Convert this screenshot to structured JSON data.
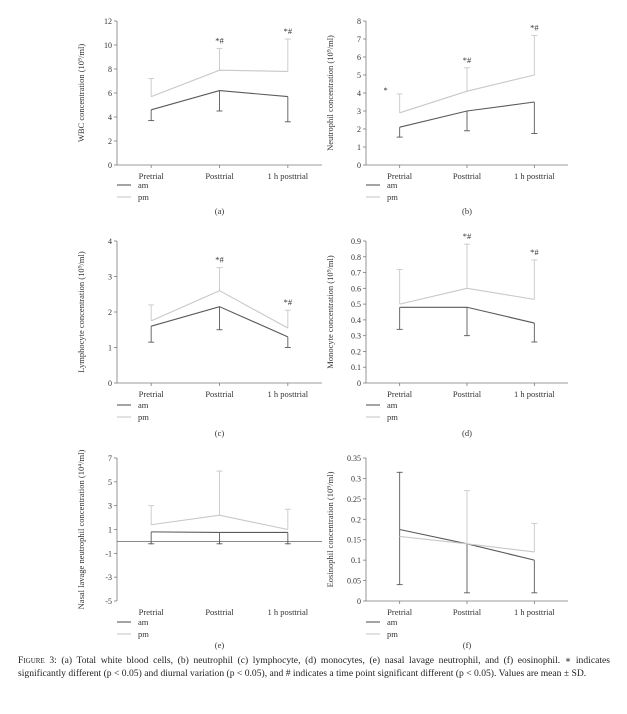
{
  "caption": {
    "label": "Figure 3:",
    "text": "(a) Total white blood cells, (b) neutrophil (c) lymphocyte, (d) monocytes, (e) nasal lavage neutrophil, and (f) eosinophil. ∗ indicates significantly different (p < 0.05) and diurnal variation (p < 0.05), and # indicates a time point significant different (p < 0.05). Values are mean ± SD."
  },
  "colors": {
    "am": "#5a5a5a",
    "pm": "#c8c8c8",
    "axis": "#7a7a7a"
  },
  "chart_data": [
    {
      "panel": "(a)",
      "type": "line",
      "ylabel": "WBC concentration (10⁹/ml)",
      "categories": [
        "Pretrial",
        "Posttrial",
        "1 h posttrial"
      ],
      "ylim": [
        0,
        12
      ],
      "yticks": [
        0,
        2,
        4,
        6,
        8,
        10,
        12
      ],
      "series": [
        {
          "name": "am",
          "values": [
            4.6,
            6.2,
            5.7
          ],
          "errors": [
            null,
            null,
            null
          ],
          "errors_down": [
            0.9,
            1.7,
            2.1
          ]
        },
        {
          "name": "pm",
          "values": [
            5.7,
            7.9,
            7.8
          ],
          "errors": [
            1.5,
            1.8,
            2.7
          ],
          "errors_down": [
            null,
            null,
            null
          ]
        }
      ],
      "annotations": [
        {
          "category": "Posttrial",
          "text": "*#"
        },
        {
          "category": "1 h posttrial",
          "text": "*#"
        }
      ]
    },
    {
      "panel": "(b)",
      "type": "line",
      "ylabel": "Neutrophil concentration (10⁹/ml)",
      "categories": [
        "Pretrial",
        "Posttrial",
        "1 h posttrial"
      ],
      "ylim": [
        0,
        8
      ],
      "yticks": [
        0,
        1,
        2,
        3,
        4,
        5,
        6,
        7,
        8
      ],
      "series": [
        {
          "name": "am",
          "values": [
            2.1,
            3.0,
            3.5
          ],
          "errors": [
            null,
            null,
            null
          ],
          "errors_down": [
            0.55,
            1.1,
            1.75
          ]
        },
        {
          "name": "pm",
          "values": [
            2.9,
            4.1,
            5.0
          ],
          "errors": [
            1.05,
            1.3,
            2.2
          ],
          "errors_down": [
            null,
            null,
            null
          ]
        }
      ],
      "annotations": [
        {
          "category": "Pretrial",
          "text": "*"
        },
        {
          "category": "Posttrial",
          "text": "*#"
        },
        {
          "category": "1 h posttrial",
          "text": "*#"
        }
      ]
    },
    {
      "panel": "(c)",
      "type": "line",
      "ylabel": "Lymphocyte concentration (10⁹/ml)",
      "categories": [
        "Pretrial",
        "Posttrial",
        "1 h posttrial"
      ],
      "ylim": [
        0,
        4
      ],
      "yticks": [
        0,
        1,
        2,
        3,
        4
      ],
      "series": [
        {
          "name": "am",
          "values": [
            1.6,
            2.15,
            1.3
          ],
          "errors": [
            null,
            null,
            null
          ],
          "errors_down": [
            0.45,
            0.65,
            0.3
          ]
        },
        {
          "name": "pm",
          "values": [
            1.75,
            2.6,
            1.55
          ],
          "errors": [
            0.45,
            0.65,
            0.5
          ],
          "errors_down": [
            null,
            null,
            null
          ]
        }
      ],
      "annotations": [
        {
          "category": "Posttrial",
          "text": "*#"
        },
        {
          "category": "1 h posttrial",
          "text": "*#"
        }
      ]
    },
    {
      "panel": "(d)",
      "type": "line",
      "ylabel": "Monocyte concentration (10⁹/ml)",
      "categories": [
        "Pretrial",
        "Posttrial",
        "1 h posttrial"
      ],
      "ylim": [
        0,
        0.9
      ],
      "yticks": [
        0,
        0.1,
        0.2,
        0.3,
        0.4,
        0.5,
        0.6,
        0.7,
        0.8,
        0.9
      ],
      "series": [
        {
          "name": "am",
          "values": [
            0.48,
            0.48,
            0.38
          ],
          "errors": [
            null,
            null,
            null
          ],
          "errors_down": [
            0.14,
            0.18,
            0.12
          ]
        },
        {
          "name": "pm",
          "values": [
            0.5,
            0.6,
            0.53
          ],
          "errors": [
            0.22,
            0.28,
            0.25
          ],
          "errors_down": [
            null,
            null,
            null
          ]
        }
      ],
      "annotations": [
        {
          "category": "Posttrial",
          "text": "*#"
        },
        {
          "category": "1 h posttrial",
          "text": "*#"
        }
      ]
    },
    {
      "panel": "(e)",
      "type": "line",
      "ylabel": "Nasal lavage neutrophil concentration (10⁴/ml)",
      "categories": [
        "Pretrial",
        "Posttrial",
        "1 h posttrial"
      ],
      "ylim": [
        -5,
        7
      ],
      "yticks": [
        -5,
        -3,
        -1,
        1,
        3,
        5,
        7
      ],
      "series": [
        {
          "name": "am",
          "values": [
            0.8,
            0.75,
            0.75
          ],
          "errors": [
            null,
            null,
            null
          ],
          "errors_down": [
            1.0,
            0.95,
            0.95
          ]
        },
        {
          "name": "pm",
          "values": [
            1.4,
            2.2,
            1.0
          ],
          "errors": [
            1.6,
            3.7,
            1.7
          ],
          "errors_down": [
            null,
            null,
            null
          ]
        }
      ],
      "annotations": []
    },
    {
      "panel": "(f)",
      "type": "line",
      "ylabel": "Eosinophil concentration (10⁹/ml)",
      "categories": [
        "Pretrial",
        "Posttrial",
        "1 h posttrial"
      ],
      "ylim": [
        0,
        0.35
      ],
      "yticks": [
        0,
        0.05,
        0.1,
        0.15,
        0.2,
        0.25,
        0.3,
        0.35
      ],
      "series": [
        {
          "name": "am",
          "values": [
            0.175,
            0.14,
            0.1
          ],
          "errors": [
            0.14,
            null,
            null
          ],
          "errors_down": [
            0.135,
            0.12,
            0.08
          ]
        },
        {
          "name": "pm",
          "values": [
            0.158,
            0.14,
            0.12
          ],
          "errors": [
            null,
            0.13,
            0.07
          ],
          "errors_down": [
            null,
            null,
            null
          ]
        }
      ],
      "annotations": []
    }
  ]
}
